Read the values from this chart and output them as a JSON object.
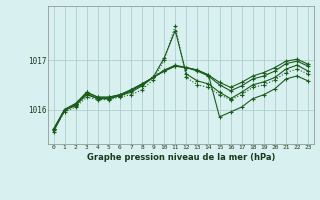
{
  "title": "Graphe pression niveau de la mer (hPa)",
  "bg_color": "#d8f0f0",
  "grid_color": "#b0cece",
  "line_color": "#1a5c1a",
  "x_min": -0.5,
  "x_max": 23.5,
  "y_min": 1015.3,
  "y_max": 1018.1,
  "yticks": [
    1016,
    1017
  ],
  "xticks": [
    0,
    1,
    2,
    3,
    4,
    5,
    6,
    7,
    8,
    9,
    10,
    11,
    12,
    13,
    14,
    15,
    16,
    17,
    18,
    19,
    20,
    21,
    22,
    23
  ],
  "series_dotted": [
    1015.6,
    1015.95,
    1016.05,
    1016.25,
    1016.2,
    1016.2,
    1016.25,
    1016.3,
    1016.4,
    1016.6,
    1017.0,
    1017.7,
    1016.65,
    1016.5,
    1016.45,
    1016.3,
    1016.2,
    1016.3,
    1016.45,
    1016.5,
    1016.6,
    1016.75,
    1016.82,
    1016.72
  ],
  "series_solid": [
    [
      1015.55,
      1015.98,
      1016.08,
      1016.3,
      1016.22,
      1016.22,
      1016.28,
      1016.35,
      1016.48,
      1016.65,
      1017.05,
      1017.6,
      1016.72,
      1016.58,
      1016.52,
      1016.35,
      1016.22,
      1016.35,
      1016.5,
      1016.56,
      1016.65,
      1016.82,
      1016.9,
      1016.78
    ],
    [
      1015.58,
      1016.0,
      1016.1,
      1016.32,
      1016.22,
      1016.22,
      1016.28,
      1016.38,
      1016.5,
      1016.65,
      1016.8,
      1016.9,
      1016.85,
      1016.78,
      1016.68,
      1016.5,
      1016.38,
      1016.48,
      1016.62,
      1016.68,
      1016.78,
      1016.93,
      1016.98,
      1016.88
    ],
    [
      1015.6,
      1016.0,
      1016.12,
      1016.35,
      1016.25,
      1016.25,
      1016.3,
      1016.4,
      1016.52,
      1016.65,
      1016.78,
      1016.88,
      1016.85,
      1016.8,
      1016.7,
      1015.85,
      1015.95,
      1016.05,
      1016.22,
      1016.3,
      1016.42,
      1016.62,
      1016.68,
      1016.58
    ],
    [
      1015.6,
      1016.0,
      1016.12,
      1016.35,
      1016.25,
      1016.25,
      1016.3,
      1016.4,
      1016.52,
      1016.65,
      1016.78,
      1016.88,
      1016.85,
      1016.8,
      1016.7,
      1016.55,
      1016.45,
      1016.55,
      1016.68,
      1016.75,
      1016.85,
      1016.98,
      1017.02,
      1016.92
    ]
  ]
}
